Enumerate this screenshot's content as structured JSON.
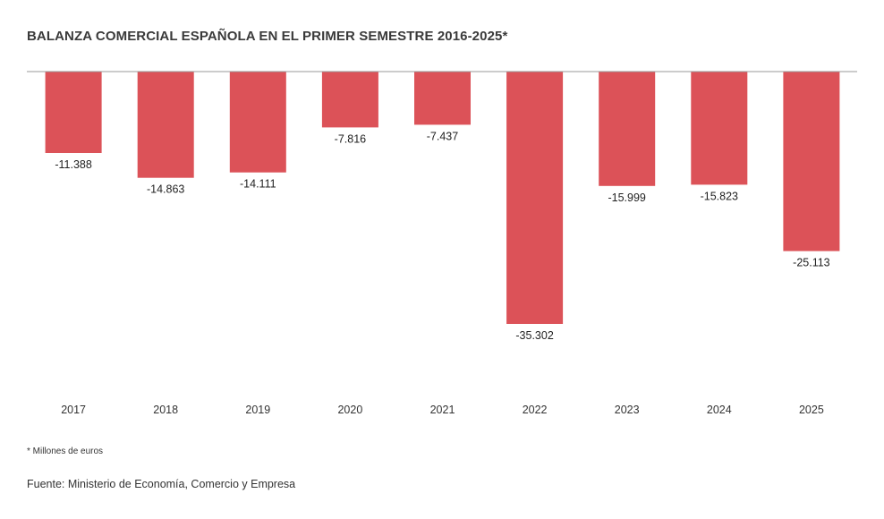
{
  "chart_data": {
    "type": "bar",
    "title": "BALANZA COMERCIAL ESPAÑOLA EN EL PRIMER SEMESTRE 2016-2025*",
    "categories": [
      "2017",
      "2018",
      "2019",
      "2020",
      "2021",
      "2022",
      "2023",
      "2024",
      "2025"
    ],
    "values": [
      -11388,
      -14863,
      -14111,
      -7816,
      -7437,
      -35302,
      -15999,
      -15823,
      -25113
    ],
    "data_labels": [
      "-11.388",
      "-14.863",
      "-14.111",
      "-7.816",
      "-7.437",
      "-35.302",
      "-15.999",
      "-15.823",
      "-25.113"
    ],
    "ylim": [
      -35302,
      0
    ],
    "bar_color": "#dc5258",
    "grid": false,
    "xlabel": "",
    "ylabel": ""
  },
  "footnote": "* Millones de euros",
  "source": "Fuente: Ministerio de Economía, Comercio y Empresa"
}
